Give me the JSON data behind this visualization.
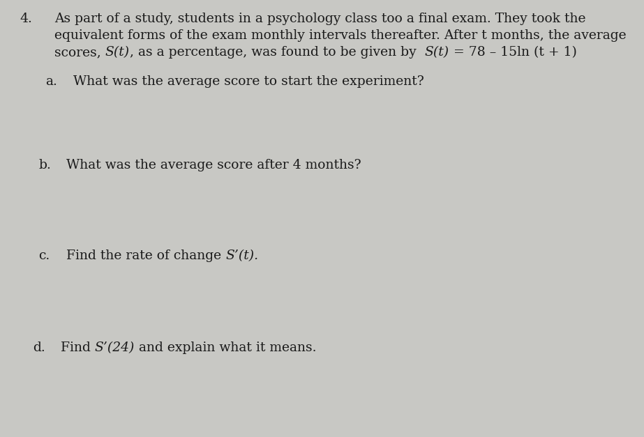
{
  "background_color": "#c8c8c4",
  "text_color": "#1a1a1a",
  "number": "4.",
  "intro_line1": "As part of a study, students in a psychology class too a final exam. They took the",
  "intro_line2": "equivalent forms of the exam monthly intervals thereafter. After t months, the average",
  "intro_line3_pre": "scores, ",
  "intro_line3_St": "S(t)",
  "intro_line3_mid": ", as a percentage, was found to be given by  ",
  "intro_line3_St2": "S(t)",
  "intro_line3_end": " = 78 – 15ln (t + 1)",
  "part_a_label": "a.",
  "part_a_text": "What was the average score to start the experiment?",
  "part_b_label": "b.",
  "part_b_text": "What was the average score after 4 months?",
  "part_c_label": "c.",
  "part_c_pre": "Find the rate of change ",
  "part_c_italic": "S’(t).",
  "part_d_label": "d.",
  "part_d_pre": "Find ",
  "part_d_italic": "S’(24)",
  "part_d_post": " and explain what it means.",
  "font_size": 13.5,
  "font_size_number": 13.5
}
